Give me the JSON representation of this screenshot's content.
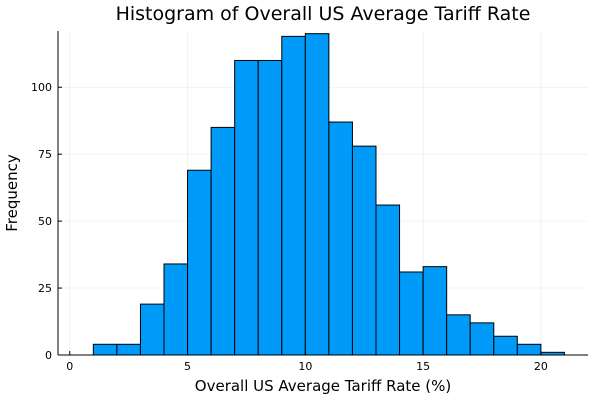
{
  "chart_data": {
    "type": "bar",
    "title": "Histogram of Overall US Average Tariff Rate",
    "xlabel": "Overall US Average Tariff Rate (%)",
    "ylabel": "Frequency",
    "bar_color": "#009AF9",
    "grid": true,
    "legend": "none",
    "xlim": [
      -0.5,
      22
    ],
    "ylim": [
      0,
      121
    ],
    "xticks": [
      0,
      5,
      10,
      15,
      20
    ],
    "yticks": [
      0,
      25,
      50,
      75,
      100
    ],
    "bins": [
      {
        "x0": 1,
        "x1": 2,
        "count": 4
      },
      {
        "x0": 2,
        "x1": 3,
        "count": 4
      },
      {
        "x0": 3,
        "x1": 4,
        "count": 19
      },
      {
        "x0": 4,
        "x1": 5,
        "count": 34
      },
      {
        "x0": 5,
        "x1": 6,
        "count": 69
      },
      {
        "x0": 6,
        "x1": 7,
        "count": 85
      },
      {
        "x0": 7,
        "x1": 8,
        "count": 110
      },
      {
        "x0": 8,
        "x1": 9,
        "count": 110
      },
      {
        "x0": 9,
        "x1": 10,
        "count": 119
      },
      {
        "x0": 10,
        "x1": 11,
        "count": 120
      },
      {
        "x0": 11,
        "x1": 12,
        "count": 87
      },
      {
        "x0": 12,
        "x1": 13,
        "count": 78
      },
      {
        "x0": 13,
        "x1": 14,
        "count": 56
      },
      {
        "x0": 14,
        "x1": 15,
        "count": 31
      },
      {
        "x0": 15,
        "x1": 16,
        "count": 33
      },
      {
        "x0": 16,
        "x1": 17,
        "count": 15
      },
      {
        "x0": 17,
        "x1": 18,
        "count": 12
      },
      {
        "x0": 18,
        "x1": 19,
        "count": 7
      },
      {
        "x0": 19,
        "x1": 20,
        "count": 4
      },
      {
        "x0": 20,
        "x1": 21,
        "count": 1
      }
    ]
  }
}
